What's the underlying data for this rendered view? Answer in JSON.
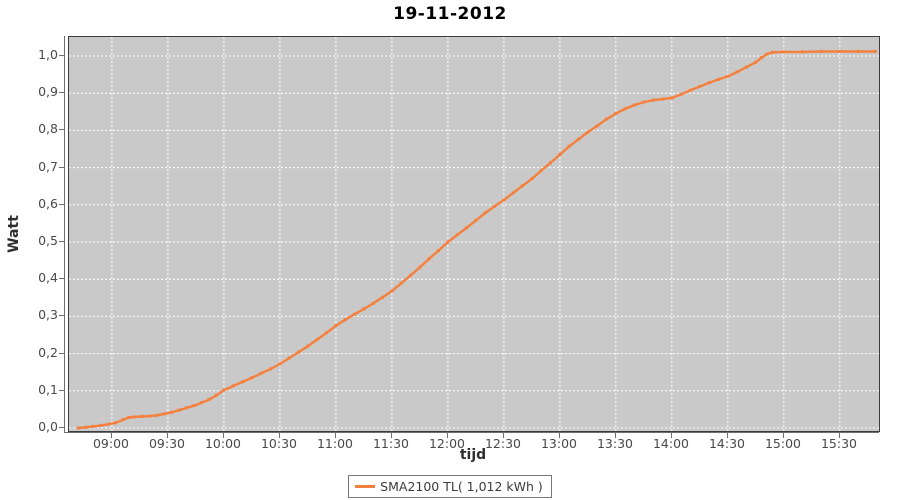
{
  "chart_data": {
    "type": "line",
    "title": "19-11-2012",
    "xlabel": "tijd",
    "ylabel": "Watt",
    "legend_position": "bottom",
    "grid": true,
    "x_range": [
      "08:37",
      "15:51"
    ],
    "ylim": [
      -0.008,
      1.051
    ],
    "x_ticks": [
      "09:00",
      "09:30",
      "10:00",
      "10:30",
      "11:00",
      "11:30",
      "12:00",
      "12:30",
      "13:00",
      "13:30",
      "14:00",
      "14:30",
      "15:00",
      "15:30"
    ],
    "y_ticks": [
      {
        "value": 0.0,
        "label": "0,0"
      },
      {
        "value": 0.1,
        "label": "0,1"
      },
      {
        "value": 0.2,
        "label": "0,2"
      },
      {
        "value": 0.3,
        "label": "0,3"
      },
      {
        "value": 0.4,
        "label": "0,4"
      },
      {
        "value": 0.5,
        "label": "0,5"
      },
      {
        "value": 0.6,
        "label": "0,6"
      },
      {
        "value": 0.7,
        "label": "0,7"
      },
      {
        "value": 0.8,
        "label": "0,8"
      },
      {
        "value": 0.9,
        "label": "0,9"
      },
      {
        "value": 1.0,
        "label": "1,0"
      }
    ],
    "colors": {
      "series": "#f5803d",
      "plot_background": "#c9c9c9",
      "gridline": "#ffffff",
      "tick_text": "#4a4a4a"
    },
    "series": [
      {
        "name": "SMA2100 TL( 1,012 kWh )",
        "color": "#f5803d",
        "total_kwh_label": "1,012 kWh",
        "points": [
          [
            "08:42",
            0.0
          ],
          [
            "08:46",
            0.002
          ],
          [
            "08:50",
            0.004
          ],
          [
            "08:54",
            0.007
          ],
          [
            "08:58",
            0.01
          ],
          [
            "09:02",
            0.014
          ],
          [
            "09:06",
            0.022
          ],
          [
            "09:09",
            0.028
          ],
          [
            "09:12",
            0.03
          ],
          [
            "09:16",
            0.031
          ],
          [
            "09:20",
            0.032
          ],
          [
            "09:24",
            0.034
          ],
          [
            "09:28",
            0.038
          ],
          [
            "09:32",
            0.042
          ],
          [
            "09:36",
            0.048
          ],
          [
            "09:40",
            0.054
          ],
          [
            "09:44",
            0.06
          ],
          [
            "09:48",
            0.068
          ],
          [
            "09:52",
            0.076
          ],
          [
            "09:56",
            0.088
          ],
          [
            "10:00",
            0.102
          ],
          [
            "10:05",
            0.113
          ],
          [
            "10:10",
            0.124
          ],
          [
            "10:15",
            0.135
          ],
          [
            "10:20",
            0.147
          ],
          [
            "10:25",
            0.159
          ],
          [
            "10:30",
            0.172
          ],
          [
            "10:35",
            0.188
          ],
          [
            "10:40",
            0.204
          ],
          [
            "10:45",
            0.22
          ],
          [
            "10:50",
            0.238
          ],
          [
            "10:55",
            0.256
          ],
          [
            "11:00",
            0.275
          ],
          [
            "11:05",
            0.291
          ],
          [
            "11:10",
            0.306
          ],
          [
            "11:15",
            0.32
          ],
          [
            "11:20",
            0.335
          ],
          [
            "11:25",
            0.351
          ],
          [
            "11:30",
            0.368
          ],
          [
            "11:35",
            0.389
          ],
          [
            "11:40",
            0.41
          ],
          [
            "11:45",
            0.432
          ],
          [
            "11:50",
            0.455
          ],
          [
            "11:55",
            0.477
          ],
          [
            "12:00",
            0.5
          ],
          [
            "12:05",
            0.519
          ],
          [
            "12:10",
            0.538
          ],
          [
            "12:15",
            0.558
          ],
          [
            "12:20",
            0.578
          ],
          [
            "12:25",
            0.596
          ],
          [
            "12:30",
            0.613
          ],
          [
            "12:35",
            0.632
          ],
          [
            "12:40",
            0.651
          ],
          [
            "12:45",
            0.67
          ],
          [
            "12:50",
            0.692
          ],
          [
            "12:55",
            0.713
          ],
          [
            "13:00",
            0.735
          ],
          [
            "13:05",
            0.757
          ],
          [
            "13:10",
            0.776
          ],
          [
            "13:15",
            0.795
          ],
          [
            "13:20",
            0.812
          ],
          [
            "13:25",
            0.83
          ],
          [
            "13:30",
            0.845
          ],
          [
            "13:35",
            0.858
          ],
          [
            "13:40",
            0.868
          ],
          [
            "13:45",
            0.876
          ],
          [
            "13:50",
            0.881
          ],
          [
            "13:55",
            0.884
          ],
          [
            "14:00",
            0.887
          ],
          [
            "14:05",
            0.897
          ],
          [
            "14:10",
            0.908
          ],
          [
            "14:15",
            0.918
          ],
          [
            "14:20",
            0.928
          ],
          [
            "14:25",
            0.937
          ],
          [
            "14:30",
            0.945
          ],
          [
            "14:35",
            0.957
          ],
          [
            "14:40",
            0.97
          ],
          [
            "14:45",
            0.983
          ],
          [
            "14:48",
            0.995
          ],
          [
            "14:51",
            1.005
          ],
          [
            "14:54",
            1.01
          ],
          [
            "15:00",
            1.011
          ],
          [
            "15:10",
            1.011
          ],
          [
            "15:20",
            1.012
          ],
          [
            "15:30",
            1.012
          ],
          [
            "15:40",
            1.012
          ],
          [
            "15:49",
            1.012
          ]
        ]
      }
    ]
  }
}
